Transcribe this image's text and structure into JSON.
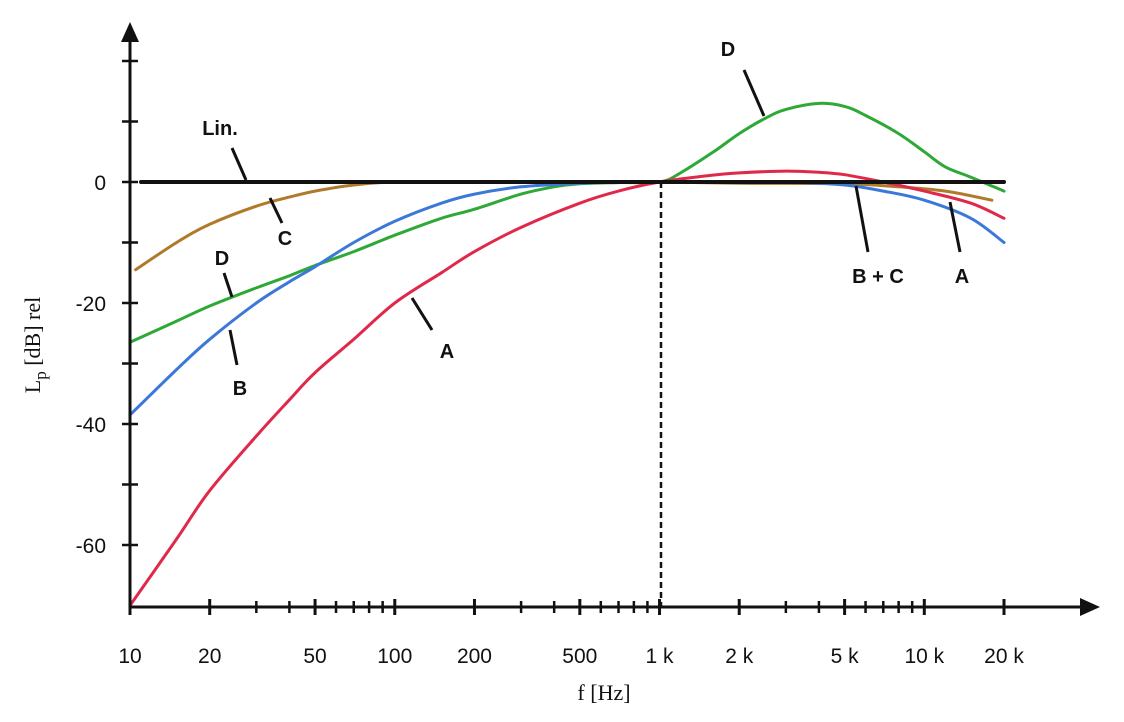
{
  "chart_data": {
    "type": "line",
    "title": "",
    "xlabel": "f [Hz]",
    "ylabel": "Lp [dB] rel",
    "ylabel_main": "L",
    "ylabel_sub": "p",
    "ylabel_rest": " [dB] rel",
    "x_scale": "log",
    "xlim": [
      10,
      20000
    ],
    "ylim": [
      -70,
      25
    ],
    "x_ticks": [
      {
        "value": 10,
        "label": "10"
      },
      {
        "value": 20,
        "label": "20"
      },
      {
        "value": 50,
        "label": "50"
      },
      {
        "value": 100,
        "label": "100"
      },
      {
        "value": 200,
        "label": "200"
      },
      {
        "value": 500,
        "label": "500"
      },
      {
        "value": 1000,
        "label": "1 k"
      },
      {
        "value": 2000,
        "label": "2 k"
      },
      {
        "value": 5000,
        "label": "5 k"
      },
      {
        "value": 10000,
        "label": "10 k"
      },
      {
        "value": 20000,
        "label": "20 k"
      }
    ],
    "y_ticks": [
      {
        "value": 0,
        "label": "0"
      },
      {
        "value": -20,
        "label": "-20"
      },
      {
        "value": -40,
        "label": "-40"
      },
      {
        "value": -60,
        "label": "-60"
      }
    ],
    "reference_line": {
      "x": 1000,
      "style": "dashed"
    },
    "grid": false,
    "series": [
      {
        "name": "Lin.",
        "color": "#111111",
        "x": [
          11,
          20000
        ],
        "y": [
          0,
          0
        ]
      },
      {
        "name": "C",
        "color": "#b07a2a",
        "x": [
          10.5,
          15,
          20,
          30,
          40,
          50,
          70,
          100,
          200,
          500,
          1000,
          2000,
          5000,
          8000,
          12000,
          18000
        ],
        "y": [
          -14.5,
          -10,
          -7,
          -4,
          -2.5,
          -1.5,
          -0.5,
          0,
          0,
          0,
          0,
          -0.2,
          -0.3,
          -0.8,
          -1.5,
          -3
        ]
      },
      {
        "name": "D",
        "color": "#2ea836",
        "x": [
          10,
          15,
          20,
          30,
          40,
          50,
          70,
          100,
          150,
          200,
          300,
          400,
          500,
          700,
          1000,
          1200,
          1600,
          2000,
          2500,
          3000,
          4000,
          5000,
          6000,
          8000,
          10000,
          12000,
          15000,
          20000
        ],
        "y": [
          -26.5,
          -23,
          -20.5,
          -17.5,
          -15.5,
          -13.8,
          -11.5,
          -8.8,
          -6,
          -4.5,
          -2,
          -0.8,
          -0.3,
          -0.1,
          0,
          1.5,
          5,
          8,
          10.5,
          12,
          13,
          12.5,
          11,
          8,
          5,
          2.5,
          0.8,
          -1.5
        ]
      },
      {
        "name": "B",
        "color": "#3b78d8",
        "x": [
          10,
          15,
          20,
          30,
          40,
          50,
          70,
          100,
          150,
          200,
          300,
          500,
          700,
          1000,
          2000,
          3000,
          5000,
          7000,
          10000,
          15000,
          20000
        ],
        "y": [
          -38.5,
          -31,
          -26,
          -20,
          -16.5,
          -14,
          -10,
          -6.5,
          -3.5,
          -2,
          -0.8,
          -0.2,
          0,
          0,
          0,
          0,
          -0.5,
          -1.5,
          -3,
          -6,
          -10
        ]
      },
      {
        "name": "A",
        "color": "#e0294a",
        "x": [
          10,
          15,
          20,
          30,
          40,
          50,
          70,
          100,
          150,
          200,
          300,
          500,
          700,
          1000,
          1500,
          2000,
          3000,
          4000,
          5000,
          7000,
          10000,
          15000,
          20000
        ],
        "y": [
          -70,
          -59,
          -51,
          -42,
          -36,
          -31.5,
          -26,
          -20,
          -15,
          -11.5,
          -7.5,
          -3.5,
          -1.5,
          0,
          1,
          1.5,
          1.8,
          1.6,
          1.2,
          0,
          -1.5,
          -3.5,
          -6
        ]
      }
    ],
    "annotations": [
      {
        "text": "Lin.",
        "series": "Lin."
      },
      {
        "text": "C",
        "series": "C"
      },
      {
        "text": "D",
        "series": "D",
        "where": "low"
      },
      {
        "text": "B",
        "series": "B"
      },
      {
        "text": "A",
        "series": "A",
        "where": "low"
      },
      {
        "text": "D",
        "series": "D",
        "where": "high"
      },
      {
        "text": "B + C",
        "series": "B"
      },
      {
        "text": "A",
        "series": "A",
        "where": "high"
      }
    ]
  }
}
